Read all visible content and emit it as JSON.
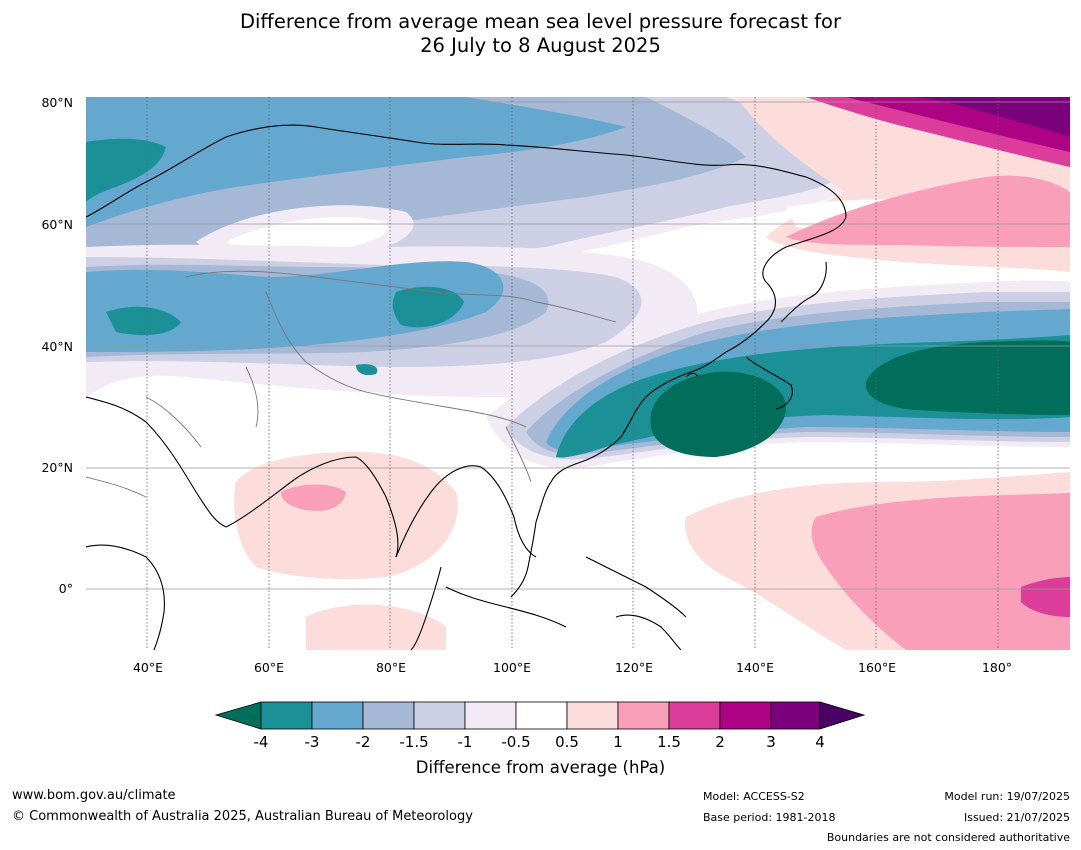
{
  "title_line1": "Difference from average mean sea level pressure forecast for",
  "title_line2": "26 July to 8 August 2025",
  "lat_labels": [
    "80°N",
    "60°N",
    "40°N",
    "20°N",
    "0°"
  ],
  "lon_labels": [
    "40°E",
    "60°E",
    "80°E",
    "100°E",
    "120°E",
    "140°E",
    "160°E",
    "180°"
  ],
  "legend": {
    "units_label": "Difference from average (hPa)",
    "ticks": [
      "-4",
      "-3",
      "-2",
      "-1.5",
      "-1",
      "-0.5",
      "0.5",
      "1",
      "1.5",
      "2",
      "3",
      "4"
    ],
    "colors": {
      "lt_-4": "#006e5a",
      "-4_-3": "#1b9096",
      "-3_-2": "#64a8d0",
      "-2_-1.5": "#a5b8d6",
      "-1.5_-1": "#cdd0e4",
      "-1_-0.5": "#f2eaf4",
      "-0.5_0.5": "#ffffff",
      "0.5_1": "#fddcdc",
      "1_1.5": "#f99fba",
      "1.5_2": "#dc3c9a",
      "2_3": "#ac0283",
      "3_4": "#7b017c",
      "gt_4": "#4b0066"
    }
  },
  "footer": {
    "website": "www.bom.gov.au/climate",
    "copyright": "© Commonwealth of Australia 2025, Australian Bureau of Meteorology",
    "model": "Model: ACCESS-S2",
    "base_period": "Base period: 1981-2018",
    "model_run": "Model run: 19/07/2025",
    "issued": "Issued: 21/07/2025",
    "disclaimer": "Boundaries are not considered authoritative"
  }
}
